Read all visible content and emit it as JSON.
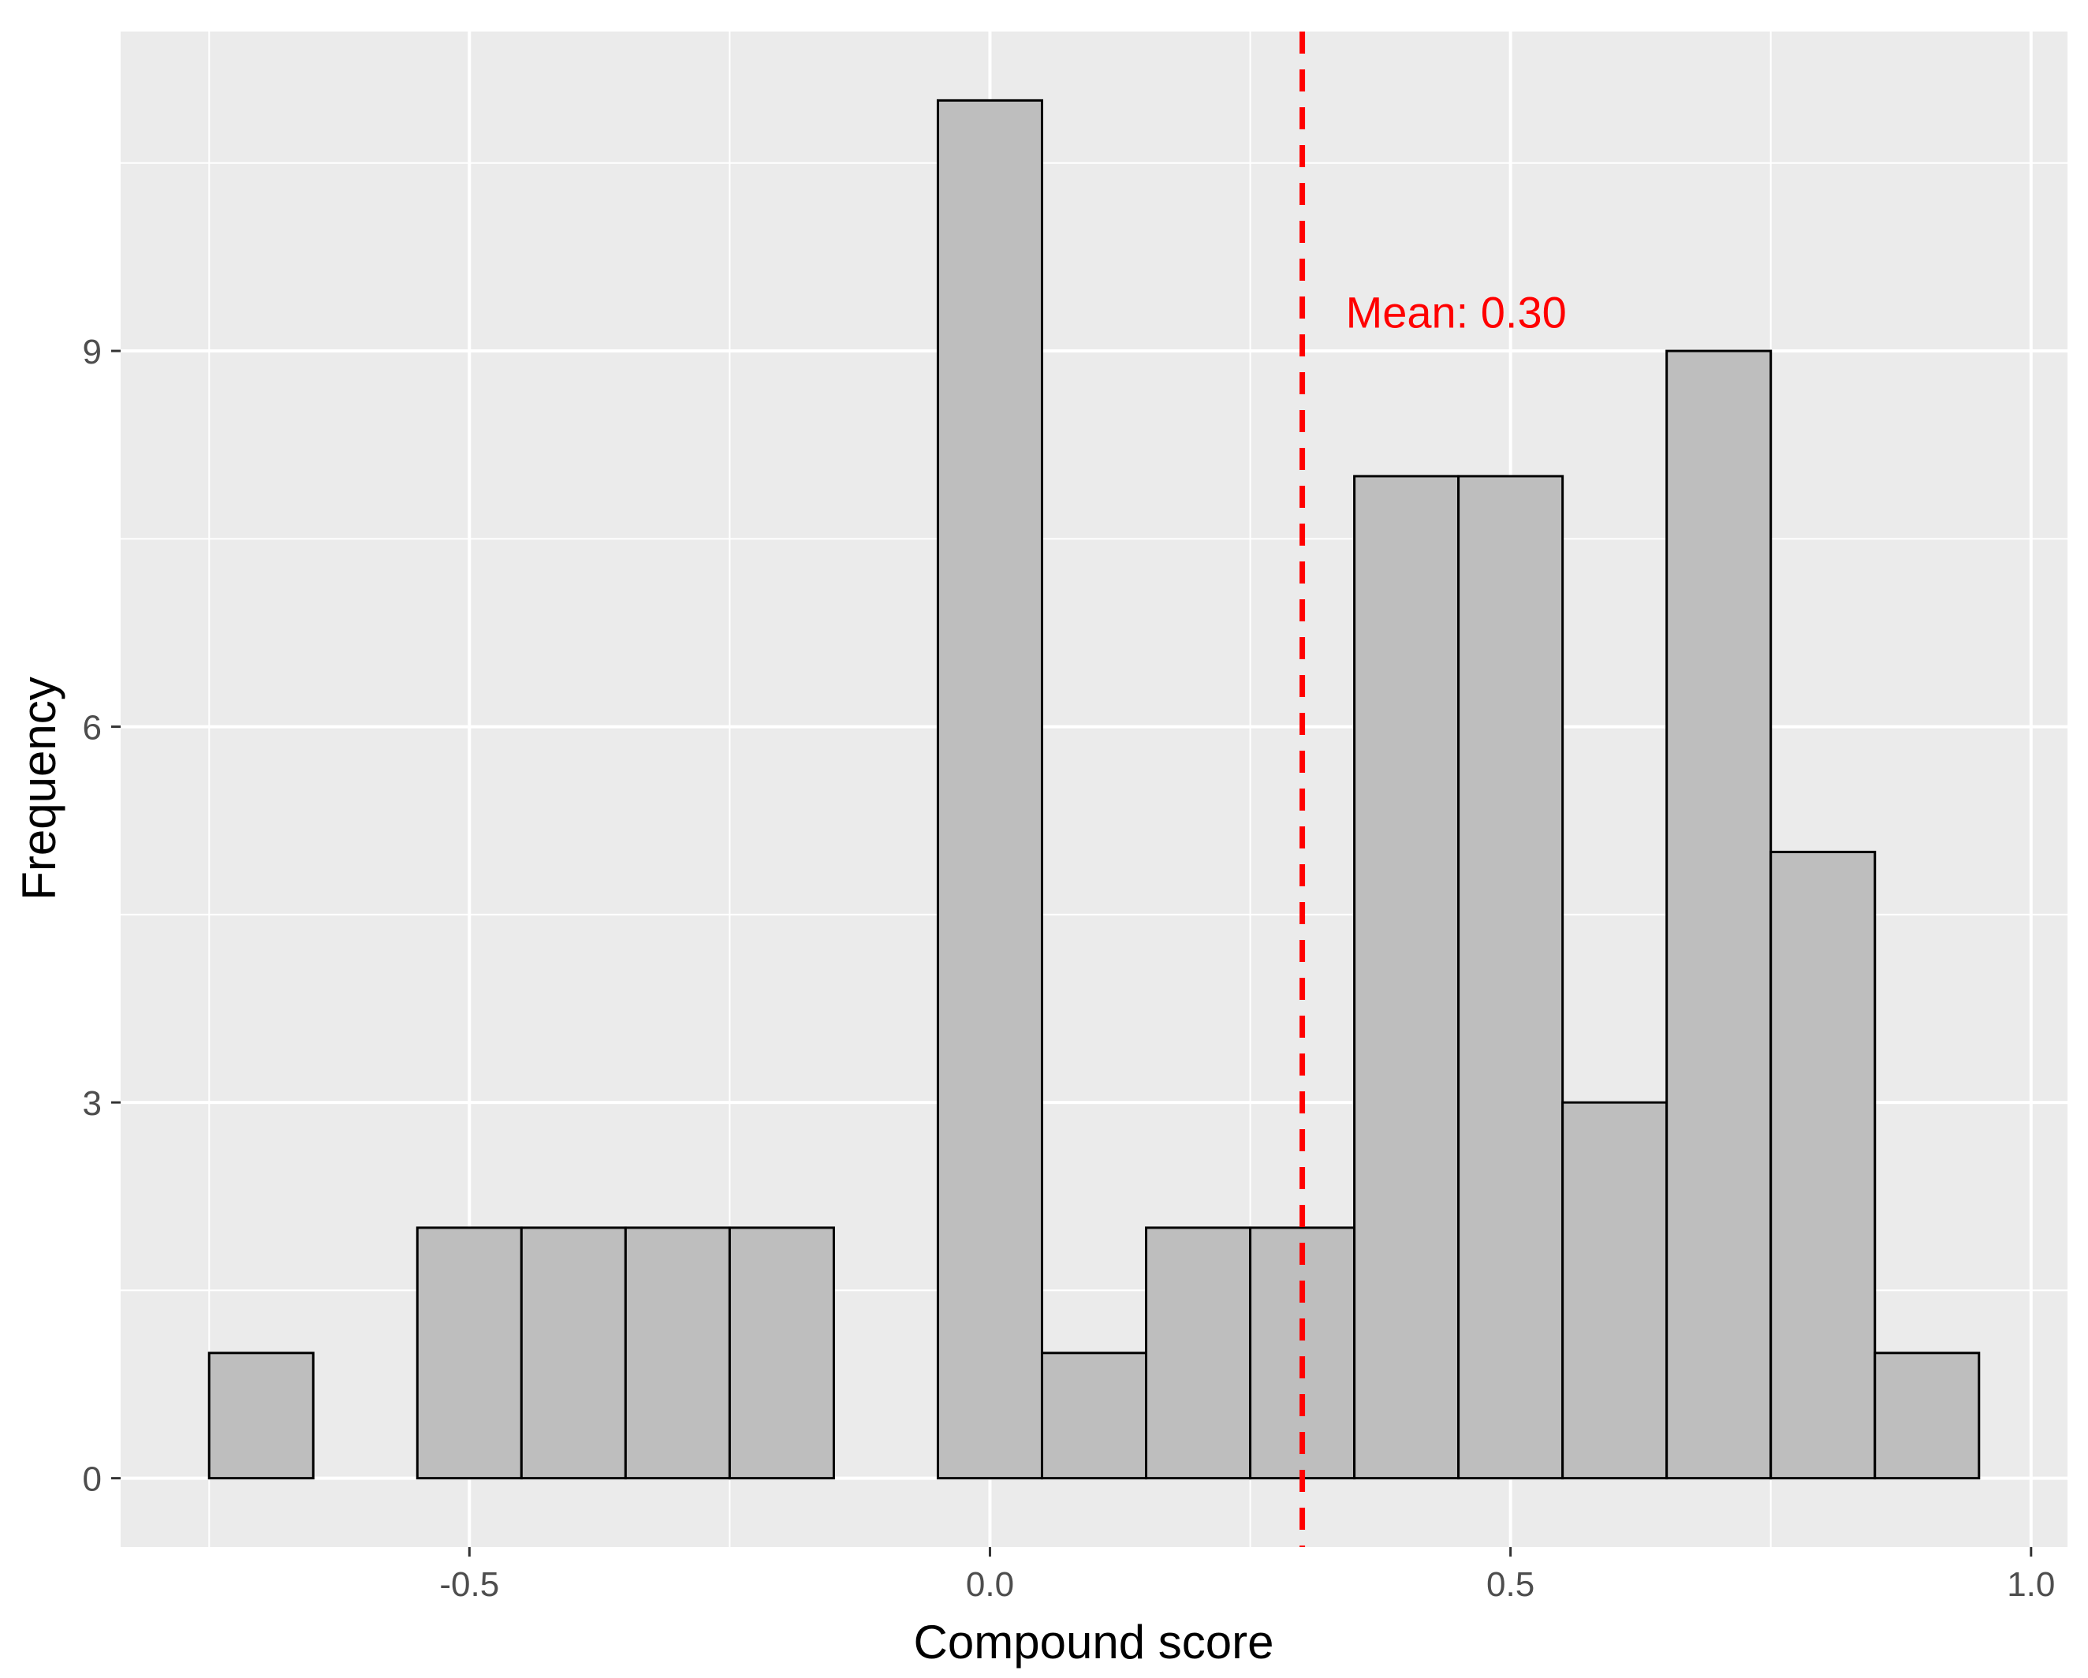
{
  "chart_data": {
    "type": "bar",
    "subtype": "histogram",
    "title": "",
    "xlabel": "Compound score",
    "ylabel": "Frequency",
    "bin_width": 0.1,
    "bins": [
      {
        "x0": -0.75,
        "x1": -0.65,
        "count": 1
      },
      {
        "x0": -0.65,
        "x1": -0.55,
        "count": 0
      },
      {
        "x0": -0.55,
        "x1": -0.45,
        "count": 2
      },
      {
        "x0": -0.45,
        "x1": -0.35,
        "count": 2
      },
      {
        "x0": -0.35,
        "x1": -0.25,
        "count": 2
      },
      {
        "x0": -0.25,
        "x1": -0.15,
        "count": 2
      },
      {
        "x0": -0.15,
        "x1": -0.05,
        "count": 0
      },
      {
        "x0": -0.05,
        "x1": 0.05,
        "count": 11
      },
      {
        "x0": 0.05,
        "x1": 0.15,
        "count": 1
      },
      {
        "x0": 0.15,
        "x1": 0.25,
        "count": 2
      },
      {
        "x0": 0.25,
        "x1": 0.35,
        "count": 2
      },
      {
        "x0": 0.35,
        "x1": 0.45,
        "count": 8
      },
      {
        "x0": 0.45,
        "x1": 0.55,
        "count": 8
      },
      {
        "x0": 0.55,
        "x1": 0.65,
        "count": 3
      },
      {
        "x0": 0.65,
        "x1": 0.75,
        "count": 9
      },
      {
        "x0": 0.75,
        "x1": 0.85,
        "count": 5
      },
      {
        "x0": 0.85,
        "x1": 0.95,
        "count": 1
      }
    ],
    "xlim": [
      -0.835,
      1.035
    ],
    "ylim": [
      -0.55,
      11.55
    ],
    "x_ticks": [
      -0.5,
      0.0,
      0.5,
      1.0
    ],
    "x_tick_labels": [
      "-0.5",
      "0.0",
      "0.5",
      "1.0"
    ],
    "y_ticks": [
      0,
      3,
      6,
      9
    ],
    "y_tick_labels": [
      "0",
      "3",
      "6",
      "9"
    ],
    "grid": true,
    "legend": "none",
    "mean_line": {
      "value": 0.3,
      "label": "Mean: 0.30",
      "color": "#ff0000",
      "label_y": 9.3
    },
    "colors": {
      "panel": "#ebebeb",
      "grid": "#ffffff",
      "bar_fill": "#bebebe",
      "bar_stroke": "#000000",
      "mean": "#ff0000"
    }
  }
}
